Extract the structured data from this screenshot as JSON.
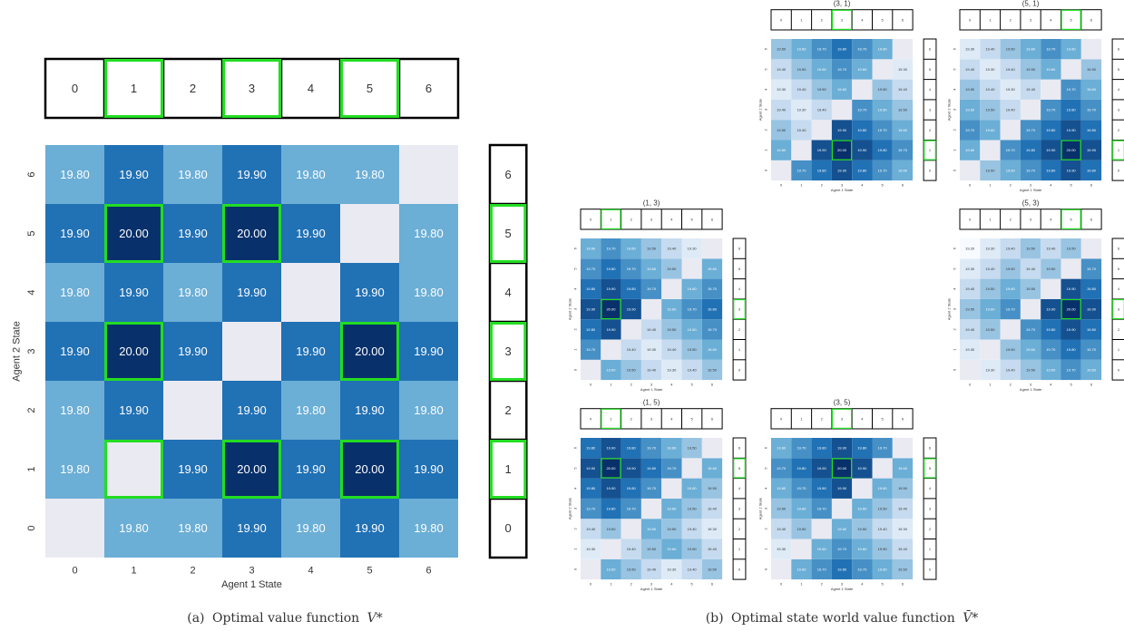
{
  "captions": {
    "a_label": "(a)",
    "a_text": "Optimal value function",
    "a_symbol": "V*",
    "b_label": "(b)",
    "b_text": "Optimal state world value function",
    "b_symbol": "V̄*"
  },
  "colors": {
    "highlight": "#22dd22",
    "nan": "#eaeaf2",
    "text_dark_cell": "#ffffff",
    "text_light_cell": "#333333",
    "cmap": [
      "#f7fbff",
      "#c6dbef",
      "#6baed6",
      "#2171b5",
      "#08306b"
    ]
  },
  "chart_data": [
    {
      "type": "heatmap",
      "title": "",
      "xlabel": "Agent 1 State",
      "ylabel": "Agent 2 State",
      "x": [
        "0",
        "1",
        "2",
        "3",
        "4",
        "5",
        "6"
      ],
      "y": [
        "0",
        "1",
        "2",
        "3",
        "4",
        "5",
        "6"
      ],
      "vmin": 19.6,
      "vmax": 20.0,
      "highlight_x": [
        1,
        3,
        5
      ],
      "highlight_y": [
        1,
        3,
        5
      ],
      "values_by_y": [
        [
          null,
          19.8,
          19.8,
          19.9,
          19.8,
          19.9,
          19.8
        ],
        [
          19.8,
          null,
          19.9,
          20.0,
          19.9,
          20.0,
          19.9
        ],
        [
          19.8,
          19.9,
          null,
          19.9,
          19.8,
          19.9,
          19.8
        ],
        [
          19.9,
          20.0,
          19.9,
          null,
          19.9,
          20.0,
          19.9
        ],
        [
          19.8,
          19.9,
          19.8,
          19.9,
          null,
          19.9,
          19.8
        ],
        [
          19.9,
          20.0,
          19.9,
          20.0,
          19.9,
          null,
          19.8
        ],
        [
          19.8,
          19.9,
          19.8,
          19.9,
          19.8,
          19.8,
          null
        ]
      ],
      "highlight_cells": [
        [
          1,
          1
        ],
        [
          3,
          1
        ],
        [
          5,
          1
        ],
        [
          1,
          3
        ],
        [
          5,
          3
        ],
        [
          1,
          5
        ],
        [
          3,
          5
        ]
      ]
    },
    {
      "type": "heatmap",
      "title": "(3, 1)",
      "xlabel": "Agent 1 State",
      "ylabel": "Agent 2 State",
      "x": [
        "0",
        "1",
        "2",
        "3",
        "4",
        "5",
        "6"
      ],
      "y": [
        "0",
        "1",
        "2",
        "3",
        "4",
        "5",
        "6"
      ],
      "vmin": 19.2,
      "vmax": 20.0,
      "highlight_x": [
        3
      ],
      "highlight_y": [
        1
      ],
      "values_by_y": [
        [
          null,
          19.7,
          19.8,
          19.9,
          19.8,
          19.7,
          19.6
        ],
        [
          19.6,
          null,
          19.9,
          20.0,
          19.9,
          19.8,
          19.7
        ],
        [
          19.5,
          19.4,
          null,
          19.9,
          19.8,
          19.7,
          19.6
        ],
        [
          19.4,
          19.3,
          19.4,
          null,
          19.7,
          19.6,
          19.5
        ],
        [
          19.3,
          19.4,
          19.5,
          19.6,
          null,
          19.5,
          19.4
        ],
        [
          19.4,
          19.5,
          19.6,
          19.7,
          19.6,
          null,
          19.3
        ],
        [
          19.5,
          19.6,
          19.7,
          19.8,
          19.7,
          19.6,
          null
        ]
      ],
      "highlight_cells": [
        [
          3,
          1
        ]
      ]
    },
    {
      "type": "heatmap",
      "title": "(5, 1)",
      "xlabel": "Agent 1 State",
      "ylabel": "Agent 2 State",
      "x": [
        "0",
        "1",
        "2",
        "3",
        "4",
        "5",
        "6"
      ],
      "y": [
        "0",
        "1",
        "2",
        "3",
        "4",
        "5",
        "6"
      ],
      "vmin": 19.2,
      "vmax": 20.0,
      "highlight_x": [
        5
      ],
      "highlight_y": [
        1
      ],
      "values_by_y": [
        [
          null,
          19.5,
          19.6,
          19.7,
          19.8,
          19.9,
          19.8
        ],
        [
          19.6,
          null,
          19.7,
          19.8,
          19.9,
          20.0,
          19.9
        ],
        [
          19.7,
          19.6,
          null,
          19.7,
          19.8,
          19.9,
          19.8
        ],
        [
          19.6,
          19.5,
          19.4,
          null,
          19.7,
          19.8,
          19.7
        ],
        [
          19.5,
          19.4,
          19.3,
          19.4,
          null,
          19.7,
          19.6
        ],
        [
          19.4,
          19.3,
          19.4,
          19.5,
          19.6,
          null,
          19.5
        ],
        [
          19.3,
          19.4,
          19.5,
          19.6,
          19.7,
          19.6,
          null
        ]
      ],
      "highlight_cells": [
        [
          5,
          1
        ]
      ]
    },
    {
      "type": "heatmap",
      "title": "(1, 3)",
      "xlabel": "Agent 1 State",
      "ylabel": "Agent 2 State",
      "x": [
        "0",
        "1",
        "2",
        "3",
        "4",
        "5",
        "6"
      ],
      "y": [
        "0",
        "1",
        "2",
        "3",
        "4",
        "5",
        "6"
      ],
      "vmin": 19.2,
      "vmax": 20.0,
      "highlight_x": [
        1
      ],
      "highlight_y": [
        3
      ],
      "values_by_y": [
        [
          null,
          19.6,
          19.5,
          19.4,
          19.3,
          19.4,
          19.5
        ],
        [
          19.7,
          null,
          19.4,
          19.3,
          19.4,
          19.5,
          19.6
        ],
        [
          19.8,
          19.9,
          null,
          19.4,
          19.5,
          19.6,
          19.7
        ],
        [
          19.9,
          20.0,
          19.9,
          null,
          19.6,
          19.7,
          19.8
        ],
        [
          19.8,
          19.9,
          19.8,
          19.7,
          null,
          19.6,
          19.7
        ],
        [
          19.7,
          19.8,
          19.7,
          19.6,
          19.5,
          null,
          19.6
        ],
        [
          19.6,
          19.7,
          19.6,
          19.5,
          19.4,
          19.3,
          null
        ]
      ],
      "highlight_cells": [
        [
          1,
          3
        ]
      ]
    },
    {
      "type": "heatmap",
      "title": "(5, 3)",
      "xlabel": "Agent 1 State",
      "ylabel": "Agent 2 State",
      "x": [
        "0",
        "1",
        "2",
        "3",
        "4",
        "5",
        "6"
      ],
      "y": [
        "0",
        "1",
        "2",
        "3",
        "4",
        "5",
        "6"
      ],
      "vmin": 19.2,
      "vmax": 20.0,
      "highlight_x": [
        5
      ],
      "highlight_y": [
        3
      ],
      "values_by_y": [
        [
          null,
          19.3,
          19.4,
          19.5,
          19.6,
          19.7,
          19.6
        ],
        [
          19.3,
          null,
          19.5,
          19.6,
          19.7,
          19.8,
          19.7
        ],
        [
          19.4,
          19.5,
          null,
          19.7,
          19.8,
          19.9,
          19.8
        ],
        [
          19.5,
          19.6,
          19.7,
          null,
          19.9,
          20.0,
          19.9
        ],
        [
          19.4,
          19.5,
          19.6,
          19.5,
          null,
          19.9,
          19.8
        ],
        [
          19.3,
          19.4,
          19.5,
          19.4,
          19.5,
          null,
          19.7
        ],
        [
          19.2,
          19.3,
          19.4,
          19.5,
          19.4,
          19.5,
          null
        ]
      ],
      "highlight_cells": [
        [
          5,
          3
        ]
      ]
    },
    {
      "type": "heatmap",
      "title": "(1, 5)",
      "xlabel": "Agent 1 State",
      "ylabel": "Agent 2 State",
      "x": [
        "0",
        "1",
        "2",
        "3",
        "4",
        "5",
        "6"
      ],
      "y": [
        "0",
        "1",
        "2",
        "3",
        "4",
        "5",
        "6"
      ],
      "vmin": 19.2,
      "vmax": 20.0,
      "highlight_x": [
        1
      ],
      "highlight_y": [
        5
      ],
      "values_by_y": [
        [
          null,
          19.6,
          19.5,
          19.4,
          19.3,
          19.4,
          19.5
        ],
        [
          19.3,
          null,
          19.4,
          19.5,
          19.6,
          19.5,
          19.4
        ],
        [
          19.4,
          19.5,
          null,
          19.6,
          19.5,
          19.4,
          19.3
        ],
        [
          19.7,
          19.8,
          19.7,
          null,
          19.6,
          19.5,
          19.4
        ],
        [
          19.8,
          19.9,
          19.8,
          19.7,
          null,
          19.6,
          19.5
        ],
        [
          19.9,
          20.0,
          19.9,
          19.8,
          19.7,
          null,
          19.6
        ],
        [
          19.8,
          19.9,
          19.8,
          19.7,
          19.6,
          19.5,
          null
        ]
      ],
      "highlight_cells": [
        [
          1,
          5
        ]
      ]
    },
    {
      "type": "heatmap",
      "title": "(3, 5)",
      "xlabel": "Agent 1 State",
      "ylabel": "Agent 2 State",
      "x": [
        "0",
        "1",
        "2",
        "3",
        "4",
        "5",
        "6"
      ],
      "y": [
        "0",
        "1",
        "2",
        "3",
        "4",
        "5",
        "6"
      ],
      "vmin": 19.2,
      "vmax": 20.0,
      "highlight_x": [
        3
      ],
      "highlight_y": [
        5
      ],
      "values_by_y": [
        [
          null,
          19.6,
          19.7,
          19.8,
          19.7,
          19.6,
          19.5
        ],
        [
          19.3,
          null,
          19.6,
          19.7,
          19.6,
          19.5,
          19.4
        ],
        [
          19.4,
          19.5,
          null,
          19.6,
          19.5,
          19.4,
          19.3
        ],
        [
          19.5,
          19.6,
          19.7,
          null,
          19.6,
          19.5,
          19.4
        ],
        [
          19.6,
          19.7,
          19.8,
          19.9,
          null,
          19.6,
          19.5
        ],
        [
          19.7,
          19.8,
          19.9,
          20.0,
          19.9,
          null,
          19.6
        ],
        [
          19.6,
          19.7,
          19.8,
          19.9,
          19.8,
          19.7,
          null
        ]
      ],
      "highlight_cells": [
        [
          3,
          5
        ]
      ]
    }
  ]
}
